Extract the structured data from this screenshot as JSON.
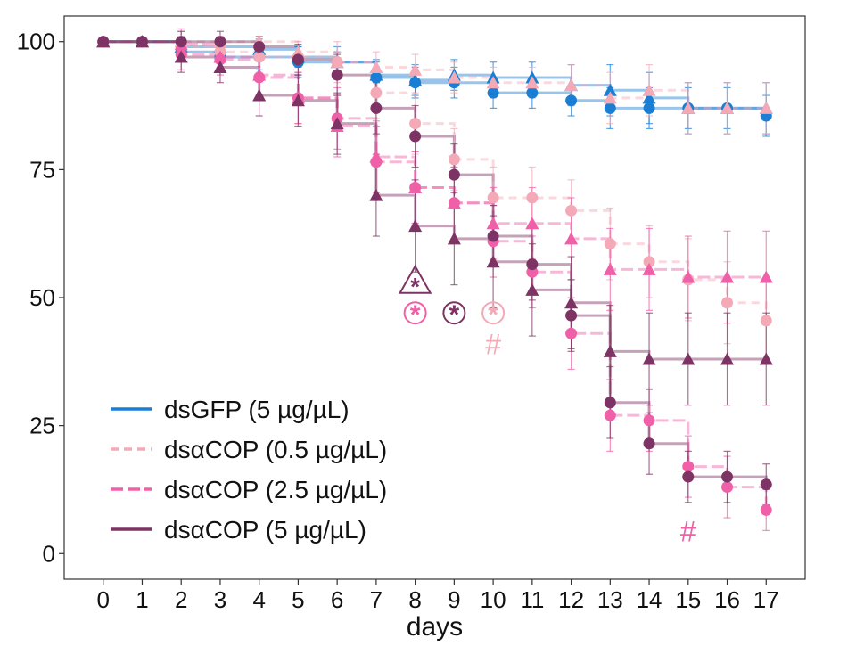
{
  "chart_data": {
    "type": "line",
    "subtype": "kaplan-meier survival (step) with error bars",
    "xlabel": "days",
    "ylabel": "",
    "x": [
      0,
      1,
      2,
      3,
      4,
      5,
      6,
      7,
      8,
      9,
      10,
      11,
      12,
      13,
      14,
      15,
      16,
      17
    ],
    "xlim": [
      -1,
      18
    ],
    "ylim": [
      -5,
      105
    ],
    "yticks": [
      0,
      25,
      50,
      75,
      100
    ],
    "grid": false,
    "legend_position": "bottom-left",
    "series": [
      {
        "name": "dsGFP (5 µg/µL)",
        "color": "#1a7fd4",
        "line_style": "solid",
        "circle": {
          "x": [
            0,
            1,
            2,
            3,
            4,
            5,
            6,
            7,
            8,
            9,
            10,
            11,
            12,
            13,
            14,
            15,
            16,
            17
          ],
          "values": [
            100,
            100,
            98,
            97,
            97,
            96,
            96,
            93,
            92,
            92,
            90,
            90,
            88.5,
            87,
            87,
            87,
            87,
            85.5
          ],
          "err": [
            0,
            0,
            2,
            2,
            2.5,
            3,
            3,
            3,
            3,
            3,
            3,
            3,
            3,
            4,
            4,
            4,
            4,
            4
          ]
        },
        "triangle": {
          "x": [
            0,
            1,
            2,
            3,
            4,
            5,
            6,
            7,
            8,
            9,
            10,
            11,
            12,
            13,
            14,
            15,
            16,
            17
          ],
          "values": [
            100,
            100,
            99,
            99,
            98.5,
            97,
            96,
            93.5,
            92.5,
            93.5,
            93,
            93,
            91.5,
            90.5,
            89,
            87,
            87,
            87
          ],
          "err": [
            0,
            0,
            2,
            2,
            2,
            2,
            2,
            3,
            3,
            3,
            3,
            3,
            4,
            5,
            5,
            5,
            5,
            5
          ]
        }
      },
      {
        "name": "dsαCOP (0.5 µg/µL)",
        "color": "#f4a9b6",
        "line_style": "dashed",
        "circle": {
          "x": [
            0,
            1,
            2,
            3,
            4,
            5,
            6,
            7,
            8,
            9,
            10,
            11,
            12,
            13,
            14,
            15,
            16,
            17
          ],
          "values": [
            100,
            100,
            99,
            98,
            97,
            97,
            96,
            90,
            84,
            77,
            69.5,
            69.5,
            67,
            60.5,
            57,
            53.5,
            49,
            45.5
          ],
          "err": [
            0,
            0,
            3,
            3,
            3,
            3,
            4,
            5,
            6,
            6,
            6,
            6,
            6,
            7,
            7,
            8,
            8,
            8
          ]
        },
        "triangle": {
          "x": [
            0,
            1,
            2,
            3,
            4,
            5,
            6,
            7,
            8,
            9,
            10,
            11,
            12,
            13,
            14,
            15,
            16,
            17
          ],
          "values": [
            100,
            100,
            100,
            100,
            100,
            98,
            96,
            95,
            94.5,
            93,
            92,
            92,
            91.5,
            89,
            90.5,
            87,
            87,
            87
          ],
          "err": [
            0,
            0,
            1,
            1,
            1,
            2,
            2,
            3,
            3,
            3,
            3,
            3,
            4,
            5,
            5,
            5,
            5,
            5
          ]
        }
      },
      {
        "name": "dsαCOP (2.5 µg/µL)",
        "color": "#f060a8",
        "line_style": "long-dash",
        "circle": {
          "x": [
            0,
            1,
            2,
            3,
            4,
            5,
            6,
            7,
            8,
            9,
            10,
            11,
            12,
            13,
            14,
            15,
            16,
            17
          ],
          "values": [
            100,
            100,
            97.5,
            96.5,
            93,
            89,
            85,
            76.5,
            71.5,
            68.5,
            61,
            55,
            43,
            27,
            26,
            17,
            13,
            8.5
          ],
          "err": [
            0,
            0,
            3,
            3,
            4,
            5,
            6,
            7,
            7,
            7,
            7,
            7,
            7,
            7,
            6,
            6,
            6,
            4
          ]
        },
        "triangle": {
          "x": [
            0,
            1,
            2,
            3,
            4,
            5,
            6,
            7,
            8,
            9,
            10,
            11,
            12,
            13,
            14,
            15,
            16,
            17
          ],
          "values": [
            100,
            100,
            99.5,
            97,
            93.5,
            89,
            83.5,
            77.5,
            71.5,
            68.5,
            64.5,
            64.5,
            61.5,
            55.5,
            55.5,
            54,
            54,
            54
          ],
          "err": [
            0,
            0,
            3,
            3,
            4,
            5,
            6,
            7,
            7,
            7,
            7,
            7,
            8,
            8,
            8,
            8,
            9,
            9
          ]
        }
      },
      {
        "name": "dsαCOP (5 µg/µL)",
        "color": "#7d3464",
        "line_style": "solid",
        "circle": {
          "x": [
            0,
            1,
            2,
            3,
            4,
            5,
            6,
            7,
            8,
            9,
            10,
            11,
            12,
            13,
            14,
            15,
            16,
            17
          ],
          "values": [
            100,
            100,
            100,
            100,
            99,
            96.5,
            93.5,
            87,
            81.5,
            74,
            62,
            56.5,
            46.5,
            29.5,
            21.5,
            15,
            15,
            13.5
          ],
          "err": [
            0,
            0,
            2,
            2,
            2,
            3,
            4,
            5,
            6,
            6,
            6,
            7,
            7,
            7,
            6,
            5,
            5,
            4
          ]
        },
        "triangle": {
          "x": [
            0,
            1,
            2,
            3,
            4,
            5,
            6,
            7,
            8,
            9,
            10,
            11,
            12,
            13,
            14,
            15,
            16,
            17
          ],
          "values": [
            100,
            100,
            97,
            95,
            89.5,
            88.5,
            84,
            70,
            64,
            61.5,
            57,
            51.5,
            49,
            39.5,
            38,
            38,
            38,
            38
          ],
          "err": [
            0,
            0,
            3,
            3,
            4,
            5,
            6,
            8,
            9,
            9,
            9,
            9,
            9,
            9,
            9,
            9,
            9,
            9
          ]
        }
      }
    ],
    "annotations": [
      {
        "symbol": "*",
        "style": "triangle-enclosed",
        "x": 8,
        "y": 53,
        "color": "#7d3464"
      },
      {
        "symbol": "*",
        "style": "circle-enclosed",
        "x": 8,
        "y": 47,
        "color": "#f060a8"
      },
      {
        "symbol": "*",
        "style": "circle-enclosed",
        "x": 9,
        "y": 47,
        "color": "#7d3464"
      },
      {
        "symbol": "*",
        "style": "circle-enclosed",
        "x": 10,
        "y": 47,
        "color": "#f4a9b6"
      },
      {
        "symbol": "#",
        "style": "plain",
        "x": 10,
        "y": 41,
        "color": "#f4a9b6"
      },
      {
        "symbol": "#",
        "style": "plain",
        "x": 15,
        "y": 4.5,
        "color": "#f060a8"
      }
    ]
  }
}
